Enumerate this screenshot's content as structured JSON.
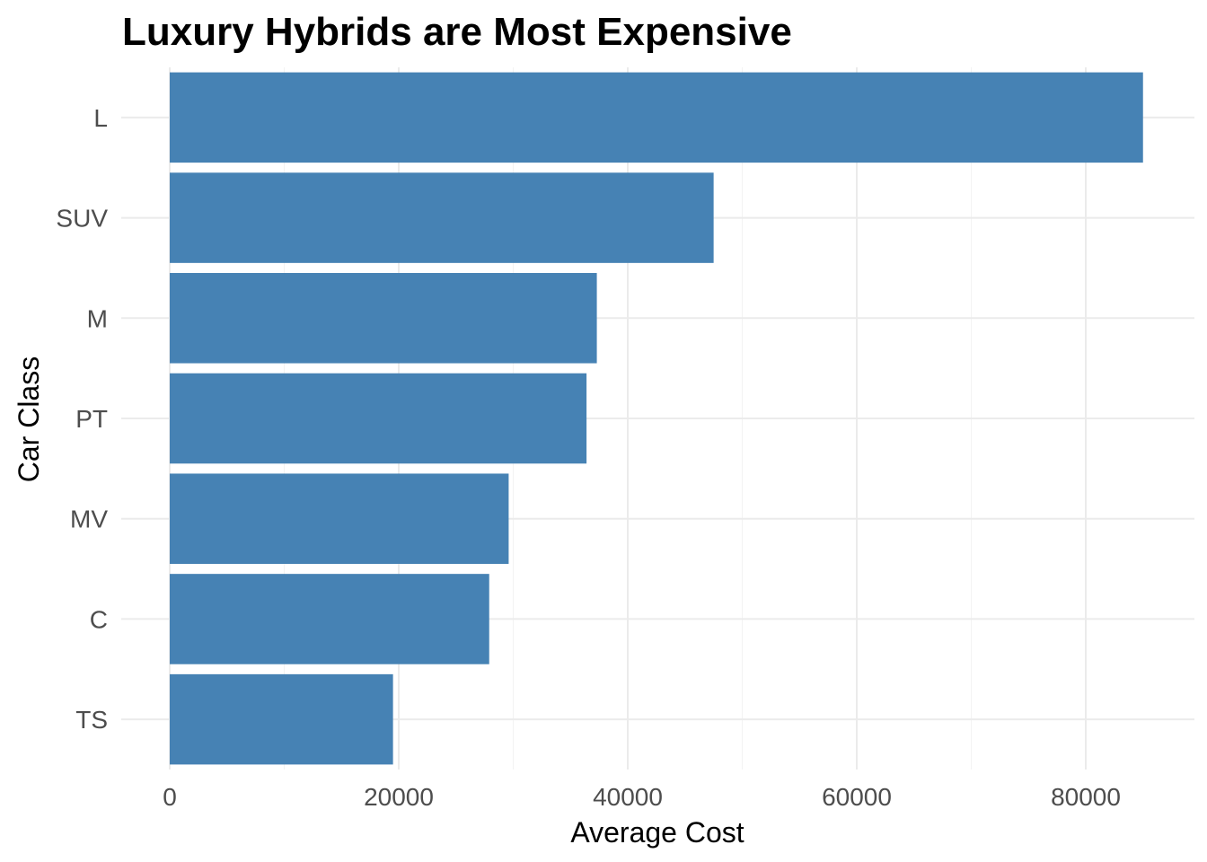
{
  "chart_data": {
    "type": "bar",
    "orientation": "horizontal",
    "title": "Luxury Hybrids are Most Expensive",
    "xlabel": "Average Cost",
    "ylabel": "Car Class",
    "categories": [
      "L",
      "SUV",
      "M",
      "PT",
      "MV",
      "C",
      "TS"
    ],
    "values": [
      85000,
      47500,
      37300,
      36400,
      29600,
      27900,
      19500
    ],
    "xticks": [
      "0",
      "20000",
      "40000",
      "60000",
      "80000"
    ],
    "xlim": [
      0,
      89000
    ],
    "bar_color": "#4682b4",
    "grid": true,
    "legend": "none"
  }
}
